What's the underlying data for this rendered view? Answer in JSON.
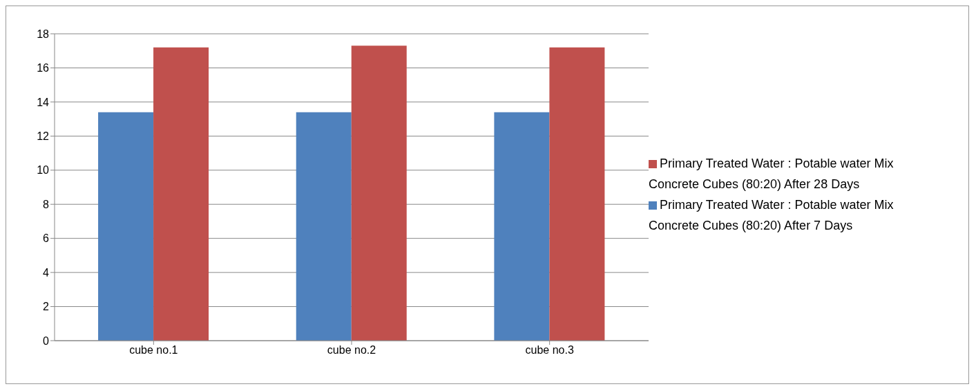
{
  "chart_data": {
    "type": "bar",
    "categories": [
      "cube no.1",
      "cube no.2",
      "cube no.3"
    ],
    "series": [
      {
        "name": "Primary Treated Water : Potable water Mix Concrete Cubes (80:20)  After 7 Days",
        "color": "#4f81bd",
        "values": [
          13.4,
          13.4,
          13.4
        ]
      },
      {
        "name": "Primary Treated Water : Potable water Mix Concrete Cubes (80:20)  After 28 Days",
        "color": "#c0504d",
        "values": [
          17.2,
          17.3,
          17.2
        ]
      }
    ],
    "ylim": [
      0,
      18
    ],
    "yticks": [
      0,
      2,
      4,
      6,
      8,
      10,
      12,
      14,
      16,
      18
    ],
    "grid": "y",
    "legend": "right"
  }
}
